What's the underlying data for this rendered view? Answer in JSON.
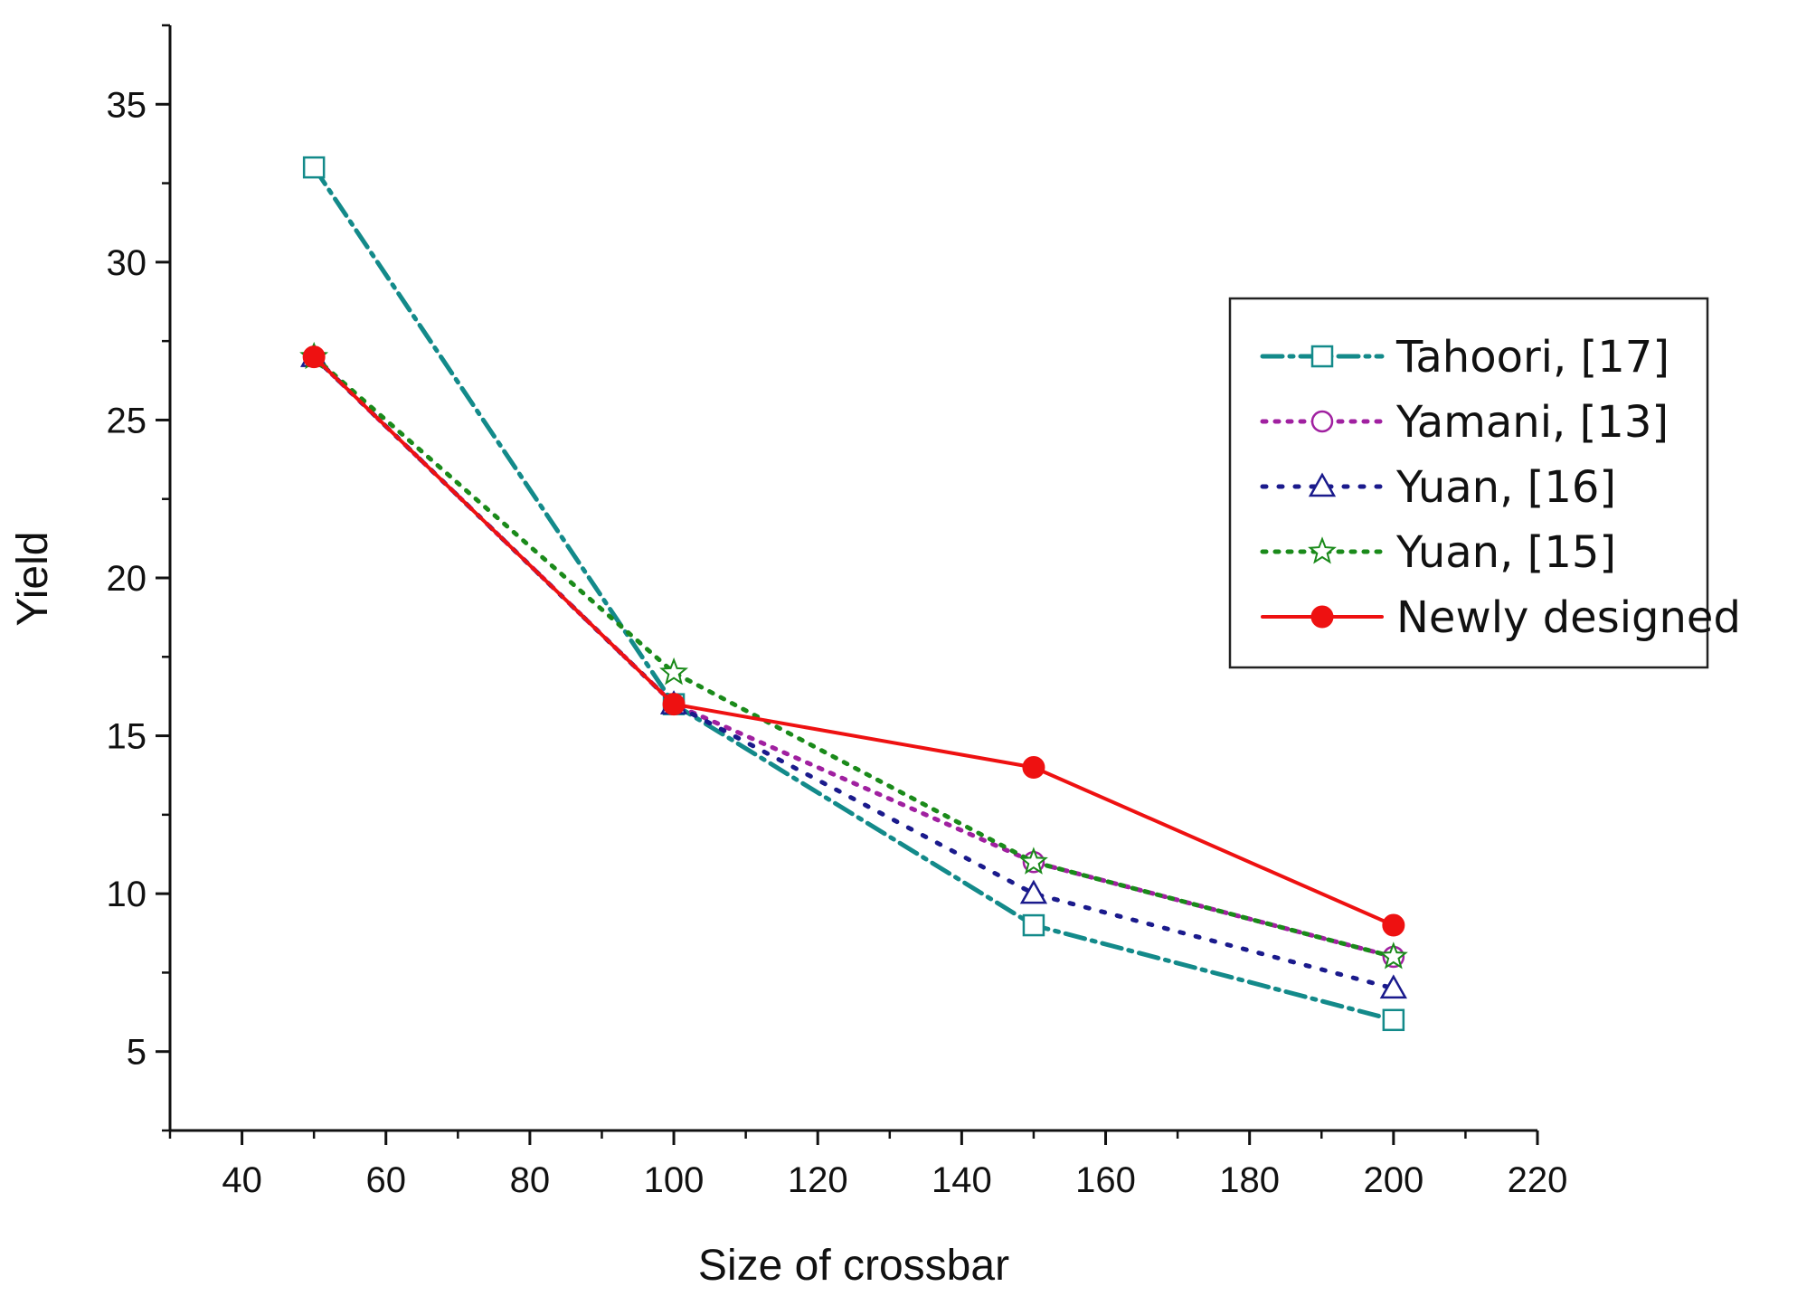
{
  "chart_data": {
    "type": "line",
    "title": "",
    "xlabel": "Size of crossbar",
    "ylabel": "Yield",
    "xlim": [
      30,
      220
    ],
    "ylim": [
      2.5,
      37.5
    ],
    "xticks": [
      40,
      60,
      80,
      100,
      120,
      140,
      160,
      180,
      200,
      220
    ],
    "yticks": [
      5,
      10,
      15,
      20,
      25,
      30,
      35
    ],
    "x": [
      50,
      100,
      150,
      200
    ],
    "legend_position": "upper-right",
    "series": [
      {
        "name": "Tahoori, [17]",
        "values": [
          33,
          16,
          9,
          6
        ],
        "color": "#138a8a",
        "dash": "dashdot",
        "marker": "square"
      },
      {
        "name": "Yamani, [13]",
        "values": [
          27,
          16,
          11,
          8
        ],
        "color": "#a020a0",
        "dash": "dot",
        "marker": "circle"
      },
      {
        "name": "Yuan, [16]",
        "values": [
          27,
          16,
          10,
          7
        ],
        "color": "#1a1a8c",
        "dash": "dot-wide",
        "marker": "triangle"
      },
      {
        "name": "Yuan, [15]",
        "values": [
          27,
          17,
          11,
          8
        ],
        "color": "#1a8a1a",
        "dash": "dot",
        "marker": "star"
      },
      {
        "name": "Newly designed",
        "values": [
          27,
          16,
          14,
          9
        ],
        "color": "#ee1111",
        "dash": "solid",
        "marker": "filled-circle"
      }
    ]
  }
}
